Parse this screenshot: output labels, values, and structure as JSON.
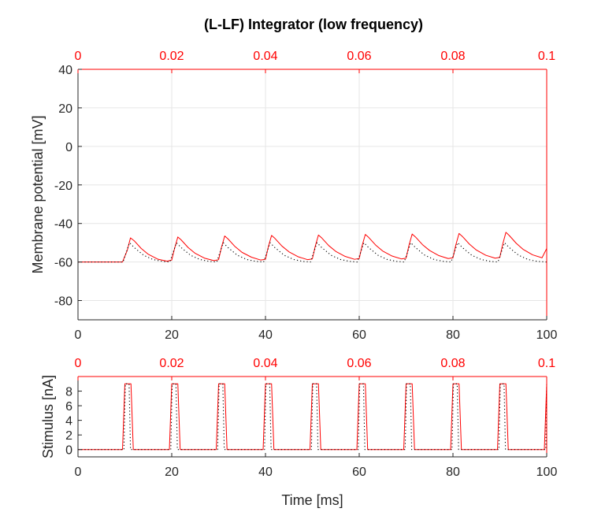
{
  "title": "(L-LF) Integrator (low frequency)",
  "colors": {
    "fast": "#ff0000",
    "slow": "#000000",
    "grid": "#e6e6e6",
    "axis": "#262626"
  },
  "chart_data": [
    {
      "type": "line",
      "panel": "membrane",
      "ylabel": "Membrane potential [mV]",
      "xlabel": "",
      "xlim": [
        0,
        100
      ],
      "ylim": [
        -90,
        40
      ],
      "xticks": [
        "0",
        "20",
        "40",
        "60",
        "80",
        "100"
      ],
      "yticks": [
        "40",
        "20",
        "0",
        "-20",
        "-40",
        "-60",
        "-80"
      ],
      "top_axis": {
        "xlim": [
          0,
          0.1
        ],
        "ticks": [
          "0",
          "0.02",
          "0.04",
          "0.06",
          "0.08",
          "0.1"
        ],
        "color": "#ff0000"
      },
      "grid": true,
      "series": [
        {
          "color": "#ff0000",
          "style": "solid",
          "x": [
            0,
            9.5,
            10.5,
            11.2,
            12,
            13.5,
            15,
            17,
            19,
            20,
            20.6,
            21.3,
            22,
            23.5,
            25,
            27,
            29,
            30,
            30.6,
            31.3,
            32,
            33.5,
            35,
            37,
            39,
            40,
            40.6,
            41.3,
            42,
            43.5,
            45,
            47,
            49,
            50,
            50.6,
            51.3,
            52,
            53.5,
            55,
            57,
            59,
            60,
            60.6,
            61.3,
            62,
            63.5,
            65,
            67,
            69,
            70,
            70.6,
            71.3,
            72,
            73.5,
            75,
            77,
            79,
            80,
            80.6,
            81.3,
            82,
            83.5,
            85,
            87,
            89,
            90,
            90.6,
            91.3,
            92,
            93.5,
            95,
            97,
            99,
            100
          ],
          "y": [
            -60,
            -60,
            -54,
            -47.5,
            -49,
            -53,
            -56,
            -58.5,
            -59.6,
            -59,
            -53,
            -47,
            -48.5,
            -52.5,
            -55.5,
            -58,
            -59.3,
            -58.8,
            -52.5,
            -46.5,
            -48,
            -52,
            -55,
            -57.5,
            -59,
            -58.6,
            -52.2,
            -46.2,
            -47.7,
            -51.7,
            -54.7,
            -57.3,
            -58.8,
            -58.4,
            -52,
            -46,
            -47.5,
            -51.5,
            -54.5,
            -57.1,
            -58.6,
            -58.2,
            -51.7,
            -45.7,
            -47.2,
            -51.2,
            -54.3,
            -56.9,
            -58.4,
            -58,
            -51.5,
            -45.5,
            -47,
            -51,
            -54,
            -56.7,
            -58.2,
            -57.8,
            -51.2,
            -45.2,
            -46.7,
            -50.7,
            -53.8,
            -56.5,
            -58,
            -57.6,
            -50.9,
            -44.6,
            -46.2,
            -50.3,
            -53.5,
            -56.3,
            -57.8,
            -53
          ]
        },
        {
          "color": "#000000",
          "style": "dotted",
          "x": [
            0,
            9.6,
            10.3,
            11,
            12,
            14,
            16,
            18,
            19.6,
            20.3,
            21,
            22,
            24,
            26,
            28,
            29.6,
            30.3,
            31,
            32,
            34,
            36,
            38,
            39.6,
            40.3,
            41,
            42,
            44,
            46,
            48,
            49.6,
            50.3,
            51,
            52,
            54,
            56,
            58,
            59.6,
            60.3,
            61,
            62,
            64,
            66,
            68,
            69.6,
            70.3,
            71,
            72,
            74,
            76,
            78,
            79.6,
            80.3,
            81,
            82,
            84,
            86,
            88,
            89.6,
            90.3,
            91,
            92,
            94,
            96,
            98,
            100
          ],
          "y": [
            -60,
            -60,
            -55,
            -50,
            -52.5,
            -56.5,
            -58.7,
            -59.7,
            -60,
            -55,
            -50,
            -52.5,
            -56.5,
            -58.7,
            -59.7,
            -60,
            -55,
            -50,
            -52.5,
            -56.5,
            -58.7,
            -59.7,
            -60,
            -55,
            -50,
            -52.5,
            -56.5,
            -58.7,
            -59.7,
            -60,
            -55,
            -50,
            -52.5,
            -56.5,
            -58.7,
            -59.7,
            -60,
            -55,
            -50,
            -52.5,
            -56.5,
            -58.7,
            -59.7,
            -60,
            -55,
            -50,
            -52.5,
            -56.5,
            -58.7,
            -59.7,
            -60,
            -55,
            -50,
            -52.5,
            -56.5,
            -58.7,
            -59.7,
            -60,
            -55,
            -50,
            -52.5,
            -56.5,
            -58.7,
            -59.7,
            -60
          ]
        }
      ]
    },
    {
      "type": "line",
      "panel": "stimulus",
      "ylabel": "Stimulus [nA]",
      "xlabel": "Time [ms]",
      "xlim": [
        0,
        100
      ],
      "ylim": [
        -1,
        10
      ],
      "xticks": [
        "0",
        "20",
        "40",
        "60",
        "80",
        "100"
      ],
      "yticks": [
        "8",
        "6",
        "4",
        "2",
        "0"
      ],
      "top_axis": {
        "xlim": [
          0,
          0.1
        ],
        "ticks": [
          "0",
          "0.02",
          "0.04",
          "0.06",
          "0.08",
          "0.1"
        ],
        "color": "#ff0000"
      },
      "grid": false,
      "series": [
        {
          "color": "#ff0000",
          "style": "solid",
          "x": [
            0,
            9.5,
            10,
            11.3,
            11.8,
            19.5,
            20,
            21.3,
            21.8,
            29.5,
            30,
            31.3,
            31.8,
            39.5,
            40,
            41.3,
            41.8,
            49.5,
            50,
            51.3,
            51.8,
            59.5,
            60,
            61.3,
            61.8,
            69.5,
            70,
            71.3,
            71.8,
            79.5,
            80,
            81.3,
            81.8,
            89.5,
            90,
            91.3,
            91.8,
            99.5,
            100
          ],
          "y": [
            0,
            0,
            9,
            9,
            0,
            0,
            9,
            9,
            0,
            0,
            9,
            9,
            0,
            0,
            9,
            9,
            0,
            0,
            9,
            9,
            0,
            0,
            9,
            9,
            0,
            0,
            9,
            9,
            0,
            0,
            9,
            9,
            0,
            0,
            9,
            9,
            0,
            0,
            9
          ]
        },
        {
          "color": "#000000",
          "style": "dotted",
          "x": [
            0,
            9.8,
            10.1,
            10.9,
            11.2,
            19.8,
            20.1,
            20.9,
            21.2,
            29.8,
            30.1,
            30.9,
            31.2,
            39.8,
            40.1,
            40.9,
            41.2,
            49.8,
            50.1,
            50.9,
            51.2,
            59.8,
            60.1,
            60.9,
            61.2,
            69.8,
            70.1,
            70.9,
            71.2,
            79.8,
            80.1,
            80.9,
            81.2,
            89.8,
            90.1,
            90.9,
            91.2,
            99.8,
            100
          ],
          "y": [
            0,
            0,
            9,
            9,
            0,
            0,
            9,
            9,
            0,
            0,
            9,
            9,
            0,
            0,
            9,
            9,
            0,
            0,
            9,
            9,
            0,
            0,
            9,
            9,
            0,
            0,
            9,
            9,
            0,
            0,
            9,
            9,
            0,
            0,
            9,
            9,
            0,
            0,
            9
          ]
        }
      ]
    }
  ]
}
